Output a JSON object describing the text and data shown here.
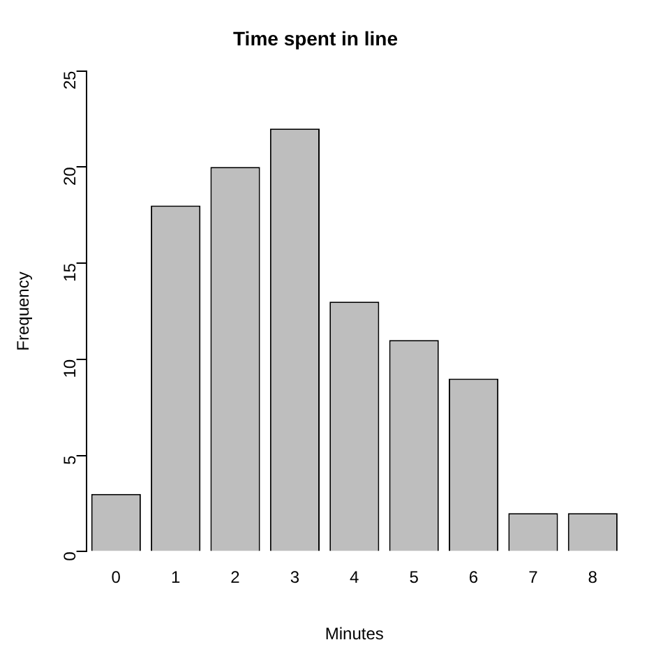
{
  "chart_data": {
    "type": "bar",
    "title": "Time spent in line",
    "xlabel": "Minutes",
    "ylabel": "Frequency",
    "categories": [
      "0",
      "1",
      "2",
      "3",
      "4",
      "5",
      "6",
      "7",
      "8"
    ],
    "values": [
      3,
      18,
      20,
      22,
      13,
      11,
      9,
      2,
      2
    ],
    "color": "#bebebe",
    "ylim": [
      0,
      25
    ],
    "yticks": [
      0,
      5,
      10,
      15,
      20,
      25
    ],
    "grid": false,
    "legend": false
  }
}
